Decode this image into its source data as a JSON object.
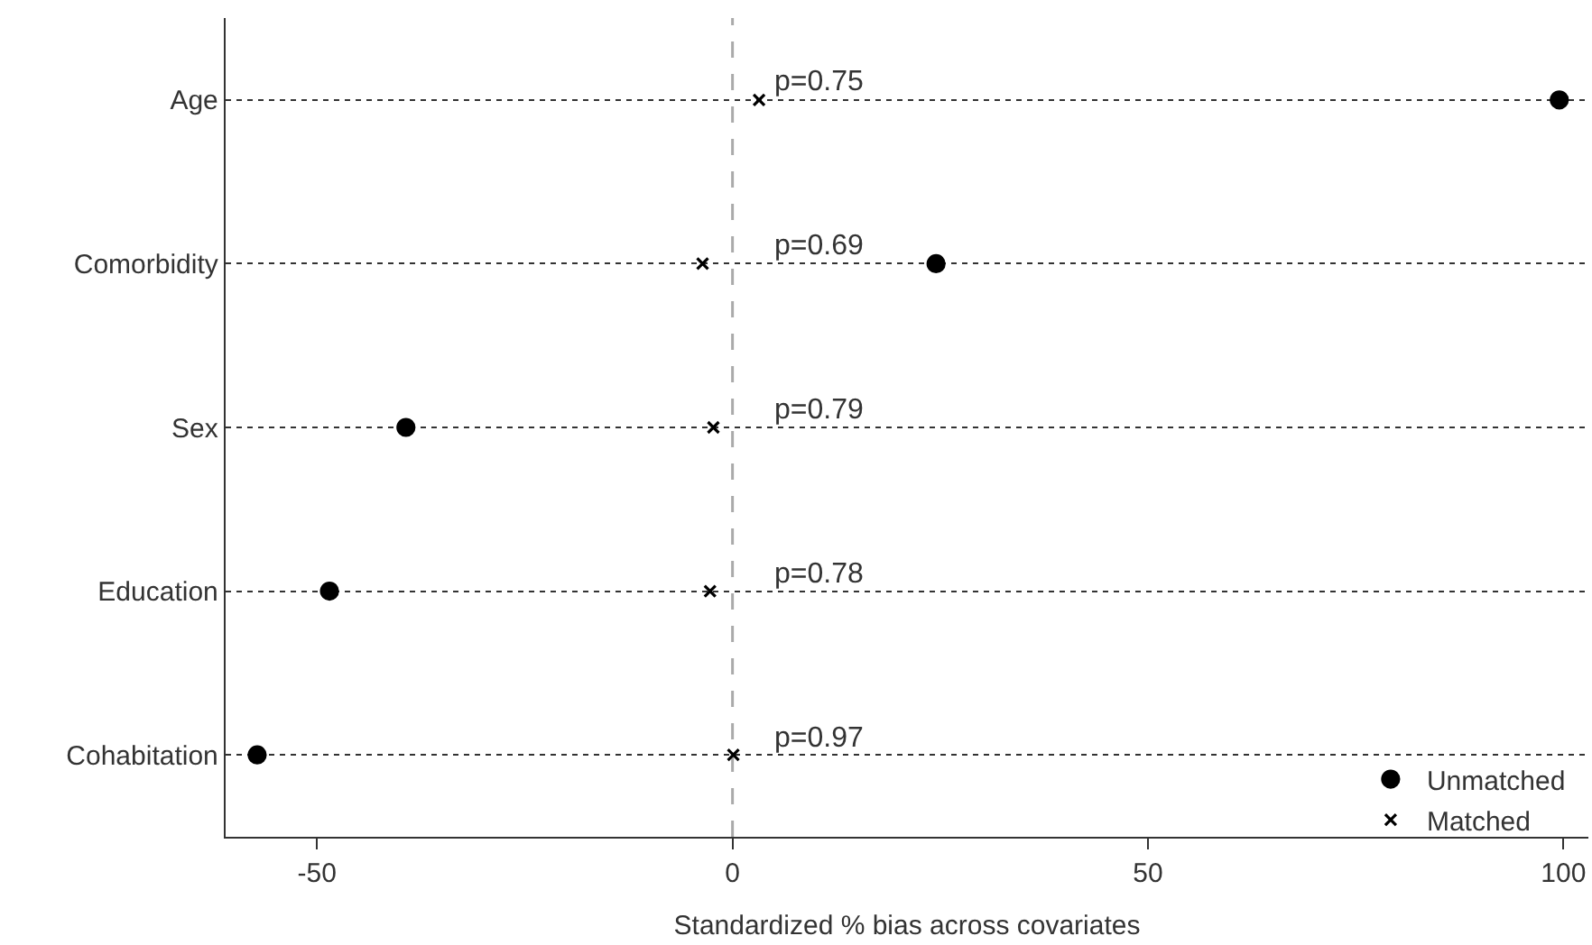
{
  "chart_data": {
    "type": "scatter",
    "orientation": "horizontal",
    "xlabel": "Standardized % bias across covariates",
    "categories": [
      "Age",
      "Comorbidity",
      "Sex",
      "Education",
      "Cohabitation"
    ],
    "series": [
      {
        "name": "Unmatched",
        "color": "#000000",
        "marker": "circle",
        "values": [
          99.5,
          24.5,
          -39.3,
          -48.5,
          -57.2
        ]
      },
      {
        "name": "Matched",
        "color": "#000000",
        "marker": "cross",
        "values": [
          3.2,
          -3.6,
          -2.3,
          -2.7,
          0.1
        ]
      }
    ],
    "xlim": [
      -61,
      103
    ],
    "xticks": [
      -50,
      0,
      50,
      100
    ],
    "grid": "y",
    "legend": "bottom right",
    "ref_lines": [
      {
        "axis": "x",
        "value": 0,
        "color": "#aaaaaa",
        "line_style": "dashed"
      }
    ],
    "annotations": [
      "p=0.75",
      "p=0.69",
      "p=0.79",
      "p=0.78",
      "p=0.97"
    ]
  }
}
